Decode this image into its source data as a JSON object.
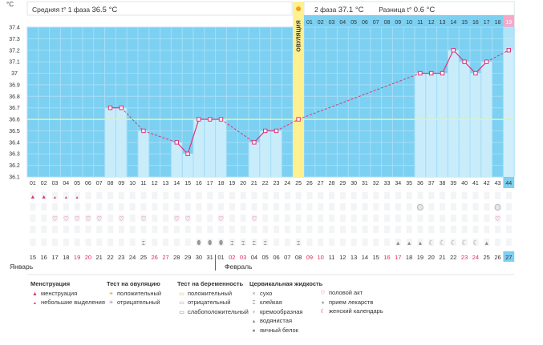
{
  "colors": {
    "blue_bg": "#7cd0f2",
    "bar_fill": "#c9ecfb",
    "ovulation": "#fff090",
    "pink": "#e0347a",
    "dash": "#d83a72",
    "coverline": "#e8f0a0",
    "red_weekend": "#e0285a"
  },
  "header": {
    "phase1_label": "Средняя t° 1 фаза",
    "phase1_value": "36.5 °C",
    "phase2_label": "2 фаза",
    "phase2_value": "37.1 °C",
    "diff_label": "Разница t°",
    "diff_value": "0.6 °C",
    "unit": "°C",
    "ovulation_label": "ОВУЛЯЦИЯ",
    "ovulation_icon": "sun-icon"
  },
  "chart_data": {
    "type": "line",
    "title": "",
    "ylabel": "°C",
    "ylim": [
      36.1,
      37.4
    ],
    "yticks": [
      "37.4",
      "37.3",
      "37.2",
      "37.1",
      "37",
      "36.9",
      "36.8",
      "36.7",
      "36.6",
      "36.5",
      "36.4",
      "36.3",
      "36.2",
      "36.1"
    ],
    "cycle_days": [
      "01",
      "02",
      "03",
      "04",
      "05",
      "06",
      "07",
      "08",
      "09",
      "10",
      "11",
      "12",
      "13",
      "14",
      "15",
      "16",
      "17",
      "18",
      "19",
      "20",
      "21",
      "22",
      "23",
      "24",
      "25",
      "26",
      "27",
      "28",
      "29",
      "30",
      "31",
      "32",
      "33",
      "34",
      "35",
      "36",
      "37",
      "38",
      "39",
      "40",
      "41",
      "42",
      "43",
      "44"
    ],
    "phase2_header_days": [
      "01",
      "02",
      "03",
      "04",
      "05",
      "06",
      "07",
      "08",
      "09",
      "10",
      "11",
      "12",
      "13",
      "14",
      "15",
      "16",
      "17",
      "18",
      "19"
    ],
    "dates": [
      "15",
      "16",
      "17",
      "18",
      "19",
      "20",
      "21",
      "22",
      "23",
      "24",
      "25",
      "26",
      "27",
      "28",
      "29",
      "30",
      "31",
      "01",
      "02",
      "03",
      "04",
      "05",
      "06",
      "07",
      "08",
      "09",
      "10",
      "11",
      "12",
      "13",
      "14",
      "15",
      "16",
      "17",
      "18",
      "19",
      "20",
      "21",
      "22",
      "23",
      "24",
      "25",
      "26",
      "27"
    ],
    "red_date_indices": [
      4,
      5,
      11,
      12,
      18,
      19,
      25,
      26,
      32,
      33,
      39,
      40
    ],
    "months": [
      {
        "label": "Январь",
        "index": 0
      },
      {
        "label": "Февраль",
        "index": 17
      }
    ],
    "temperatures": [
      {
        "day": 8,
        "t": 36.7
      },
      {
        "day": 9,
        "t": 36.7
      },
      {
        "day": 11,
        "t": 36.5
      },
      {
        "day": 14,
        "t": 36.4
      },
      {
        "day": 15,
        "t": 36.3
      },
      {
        "day": 16,
        "t": 36.6
      },
      {
        "day": 17,
        "t": 36.6
      },
      {
        "day": 18,
        "t": 36.6
      },
      {
        "day": 21,
        "t": 36.4
      },
      {
        "day": 22,
        "t": 36.5
      },
      {
        "day": 23,
        "t": 36.5
      },
      {
        "day": 36,
        "t": 37.0
      },
      {
        "day": 37,
        "t": 37.0
      },
      {
        "day": 38,
        "t": 37.0
      },
      {
        "day": 39,
        "t": 37.2
      },
      {
        "day": 40,
        "t": 37.1
      },
      {
        "day": 41,
        "t": 37.0
      },
      {
        "day": 42,
        "t": 37.1
      },
      {
        "day": 44,
        "t": 37.2
      }
    ],
    "dashed_links": [
      [
        9,
        11
      ],
      [
        11,
        14
      ],
      [
        18,
        21
      ],
      [
        23,
        25
      ],
      [
        25,
        36
      ],
      [
        42,
        44
      ]
    ],
    "ovulation_day": 25,
    "ovulation_point": 36.6,
    "coverline": 36.6,
    "highlighted_last_day": 44,
    "rows": {
      "menstruation_heavy": [
        1,
        2
      ],
      "menstruation_light": [
        3,
        4,
        5
      ],
      "medication": [
        36,
        43
      ],
      "intercourse": [
        3,
        4,
        5,
        6,
        7,
        9,
        11,
        14,
        15,
        18,
        21,
        43
      ],
      "mucus_creamy": [
        11,
        19,
        20,
        21,
        22,
        25
      ],
      "mucus_watery_or_eggwhite": [
        16,
        17,
        18
      ],
      "mucus_sticky_drop": [
        34,
        35,
        36,
        42
      ],
      "mucus_calendar_moon": [
        37,
        38,
        39,
        40,
        41
      ]
    }
  },
  "legend": {
    "menstruation": {
      "title": "Менструация",
      "items": [
        "менструация",
        "небольшие выделения"
      ],
      "icons": [
        "drop-double-icon",
        "drop-small-icon"
      ]
    },
    "ovulation_test": {
      "title": "Тест на овуляцию",
      "items": [
        "положительный",
        "отрицательный"
      ],
      "icons": [
        "sun-icon",
        "sun-grey-icon"
      ]
    },
    "pregnancy_test": {
      "title": "Тест на беременность",
      "items": [
        "положительный",
        "отрицательный",
        "слабоположительный"
      ],
      "icons": [
        "test-positive-icon",
        "test-negative-icon",
        "test-weak-icon"
      ]
    },
    "cervical": {
      "title": "Цервикальная жидкость",
      "items": [
        "сухо",
        "клейкая",
        "кремообразная",
        "водянистая",
        "яичный белок"
      ],
      "icons": [
        "cross-icon",
        "sticky-icon",
        "cream-icon",
        "watery-icon",
        "egg-white-icon"
      ]
    },
    "other": {
      "title": "",
      "items": [
        "половой акт",
        "прием лекарств",
        "женский календарь"
      ],
      "icons": [
        "heart-icon",
        "pill-icon",
        "moon-icon"
      ]
    }
  }
}
